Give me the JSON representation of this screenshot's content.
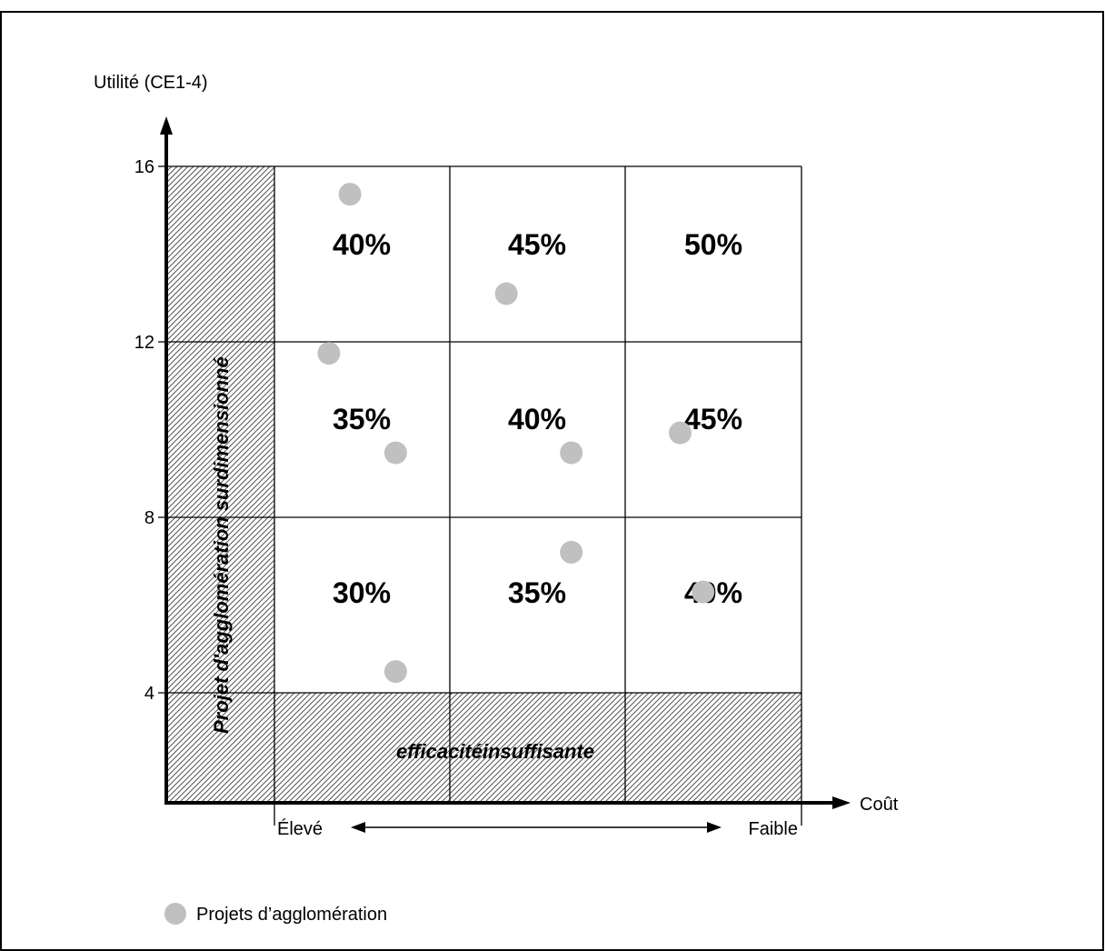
{
  "chart_data": {
    "type": "scatter",
    "title": "",
    "ylabel": "Utilité (CE1-4)",
    "xlabel": "Coût",
    "y_ticks": [
      "16",
      "12",
      "8",
      "4"
    ],
    "ylim": [
      0,
      16
    ],
    "x_range_labels": {
      "left": "Élevé",
      "right": "Faible"
    },
    "columns": [
      "Élevé",
      "",
      "Faible"
    ],
    "grid_percentages": [
      [
        "40%",
        "45%",
        "50%"
      ],
      [
        "35%",
        "40%",
        "45%"
      ],
      [
        "30%",
        "35%",
        "40%"
      ]
    ],
    "hatched_zones": {
      "vertical_label": "Projet d'agglomération surdimensionné",
      "horizontal_label": "efficacitéinsuffisante"
    },
    "series": [
      {
        "name": "Projets d’agglomération",
        "color": "#c0c0c0",
        "points": [
          {
            "x": 0.43,
            "y": 15.3
          },
          {
            "x": 1.32,
            "y": 12.8
          },
          {
            "x": 0.31,
            "y": 11.3
          },
          {
            "x": 0.69,
            "y": 8.8
          },
          {
            "x": 1.69,
            "y": 8.8
          },
          {
            "x": 2.31,
            "y": 9.3
          },
          {
            "x": 1.69,
            "y": 6.3
          },
          {
            "x": 2.44,
            "y": 5.3
          },
          {
            "x": 0.69,
            "y": 3.3
          }
        ]
      }
    ]
  }
}
